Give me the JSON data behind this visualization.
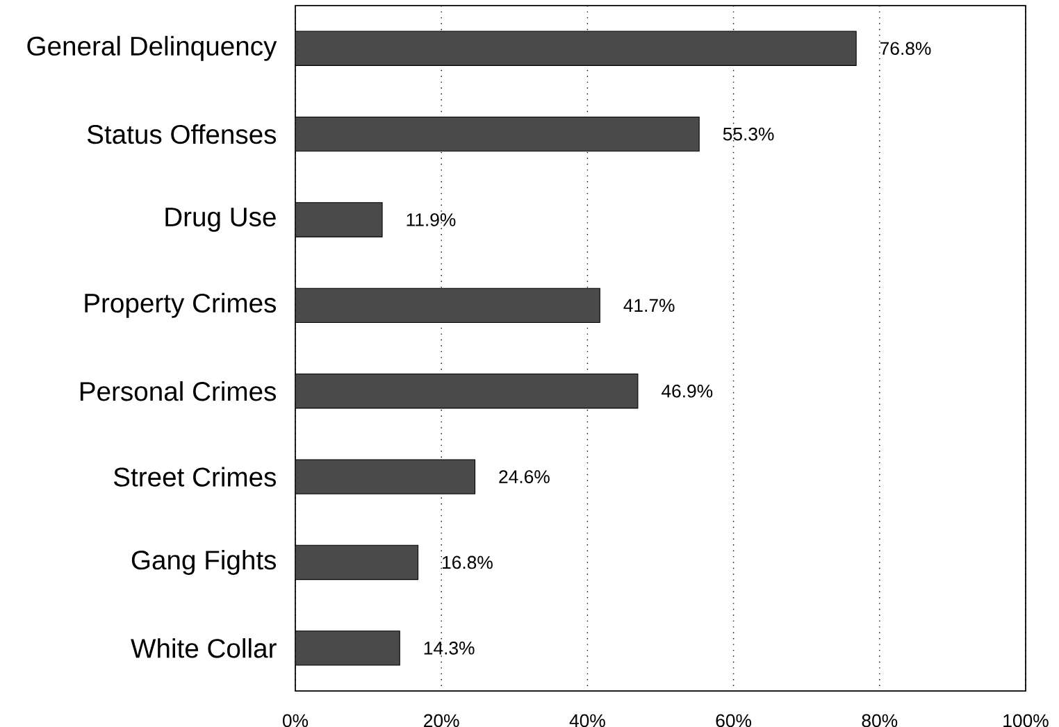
{
  "chart_data": {
    "type": "bar",
    "orientation": "horizontal",
    "categories": [
      "General Delinquency",
      "Status Offenses",
      "Drug Use",
      "Property Crimes",
      "Personal Crimes",
      "Street Crimes",
      "Gang Fights",
      "White Collar"
    ],
    "values": [
      76.8,
      55.3,
      11.9,
      41.7,
      46.9,
      24.6,
      16.8,
      14.3
    ],
    "value_labels": [
      "76.8%",
      "55.3%",
      "11.9%",
      "41.7%",
      "46.9%",
      "24.6%",
      "16.8%",
      "14.3%"
    ],
    "color": "#4a4a4a",
    "xlim": [
      0,
      100
    ],
    "xticks": [
      {
        "value": 0,
        "label": "0%"
      },
      {
        "value": 20,
        "label": "20%"
      },
      {
        "value": 40,
        "label": "40%"
      },
      {
        "value": 60,
        "label": "60%"
      },
      {
        "value": 80,
        "label": "80%"
      },
      {
        "value": 100,
        "label": "100%"
      }
    ],
    "grid": "x",
    "line_style": "dotted"
  }
}
